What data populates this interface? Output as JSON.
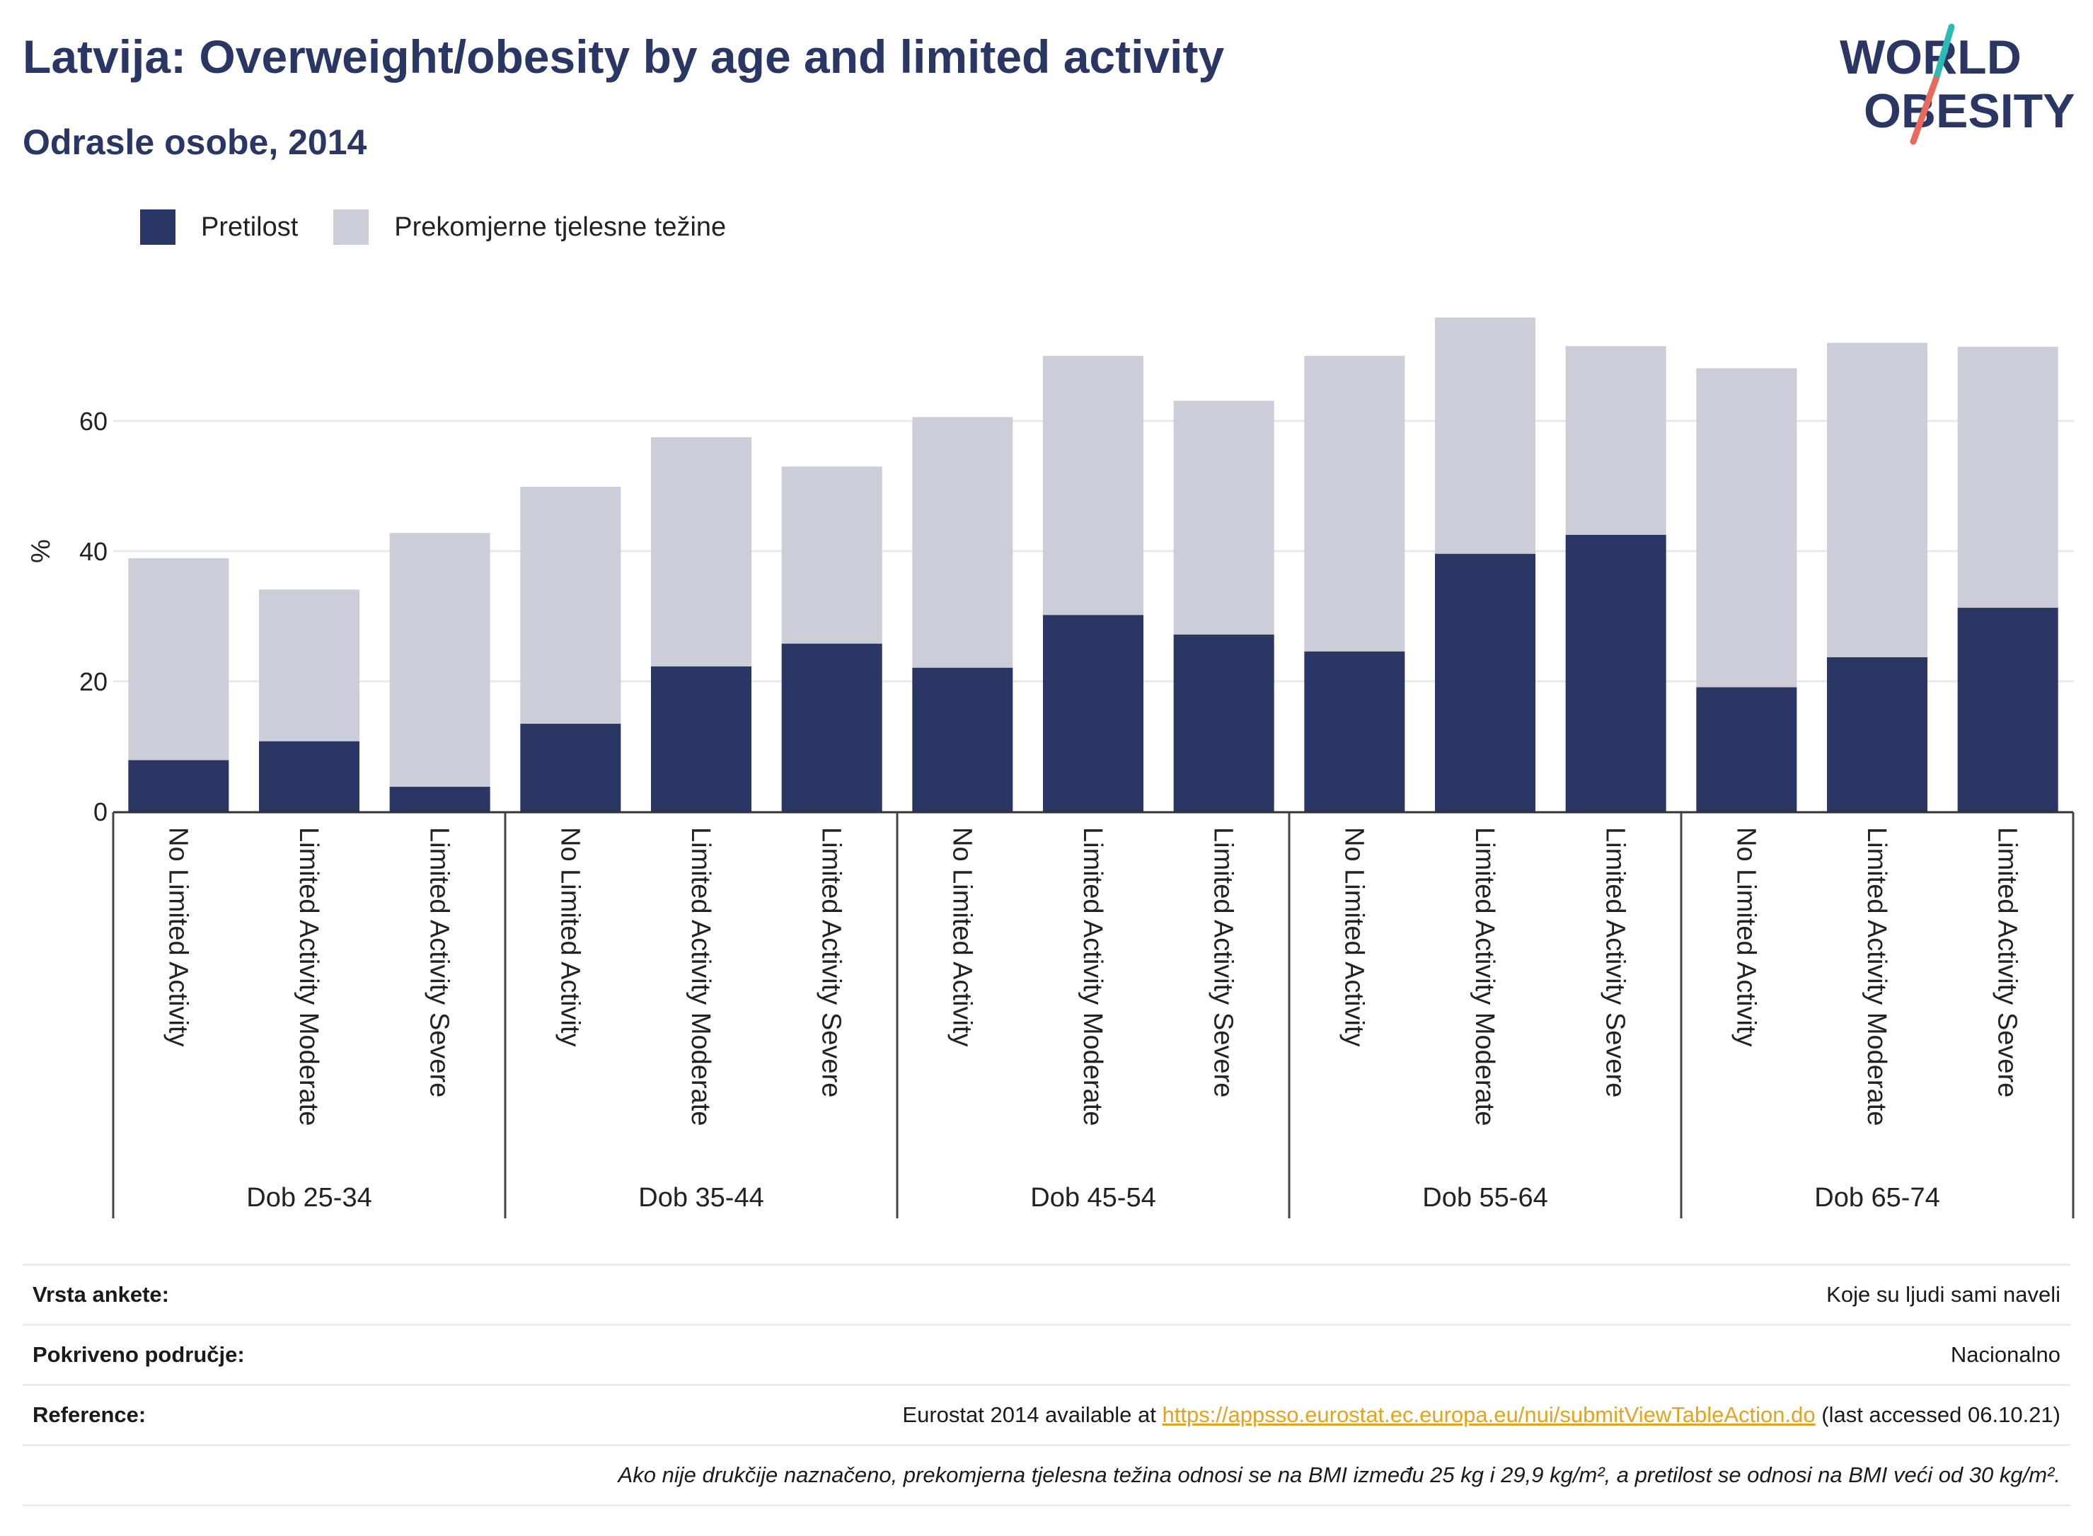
{
  "header": {
    "title": "Latvija: Overweight/obesity by age and limited activity",
    "subtitle": "Odrasle osobe, 2014"
  },
  "logo": {
    "line1": "WORLD",
    "line2": "OBESITY"
  },
  "legend": {
    "items": [
      {
        "label": "Pretilost",
        "color": "#2a3663"
      },
      {
        "label": "Prekomjerne tjelesne težine",
        "color": "#cbcdd9"
      }
    ]
  },
  "chart_data": {
    "type": "bar",
    "stacked": true,
    "ylabel": "%",
    "ylim": [
      0,
      80
    ],
    "yticks": [
      0,
      20,
      40,
      60
    ],
    "grid": true,
    "legend_position": "top-left",
    "groups": [
      "Dob 25-34",
      "Dob 35-44",
      "Dob 45-54",
      "Dob 55-64",
      "Dob 65-74"
    ],
    "subcategories": [
      "No Limited Activity",
      "Limited Activity Moderate",
      "Limited Activity Severe"
    ],
    "series": [
      {
        "name": "Pretilost",
        "color": "#2a3663",
        "values": [
          7.9,
          10.8,
          3.8,
          13.5,
          22.3,
          25.8,
          22.1,
          30.2,
          27.2,
          24.6,
          39.6,
          42.5,
          19.1,
          23.7,
          31.3
        ]
      },
      {
        "name": "Prekomjerne tjelesne težine",
        "color": "#cbcdd9",
        "values": [
          31.0,
          23.3,
          39.0,
          36.4,
          35.2,
          27.2,
          38.5,
          39.8,
          35.9,
          45.4,
          36.3,
          29.0,
          49.0,
          48.3,
          40.1
        ]
      }
    ]
  },
  "info": {
    "rows": [
      {
        "label": "Vrsta ankete:",
        "value": "Koje su ljudi sami naveli"
      },
      {
        "label": "Pokriveno područje:",
        "value": "Nacionalno"
      }
    ],
    "reference": {
      "label": "Reference:",
      "prefix": "Eurostat 2014 available at ",
      "link": "https://appsso.eurostat.ec.europa.eu/nui/submitViewTableAction.do",
      "suffix": " (last accessed 06.10.21)"
    },
    "note": "Ako nije drukčije naznačeno, prekomjerna tjelesna težina odnosi se na BMI između 25 kg i 29,9 kg/m², a pretilost se odnosi na BMI veći od 30 kg/m²."
  }
}
